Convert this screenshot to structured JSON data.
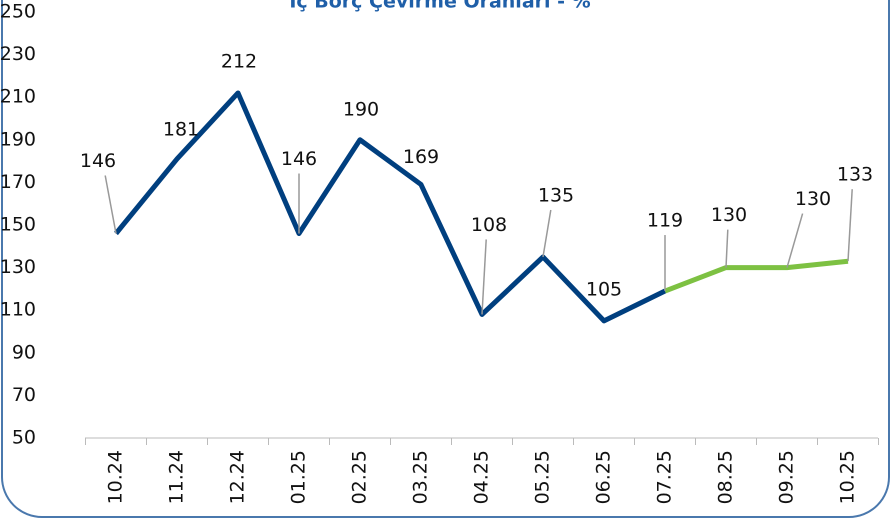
{
  "chart_data": {
    "type": "line",
    "title": "İç Borç Çevirme Oranları - %",
    "categories": [
      "10.24",
      "11.24",
      "12.24",
      "01.25",
      "02.25",
      "03.25",
      "04.25",
      "05.25",
      "06.25",
      "07.25",
      "08.25",
      "09.25",
      "10.25"
    ],
    "series": [
      {
        "color": "#003f7f",
        "values": [
          146,
          181,
          212,
          146,
          190,
          169,
          108,
          135,
          105,
          119,
          null,
          null,
          null
        ]
      },
      {
        "color": "#7dc142",
        "values": [
          null,
          null,
          null,
          null,
          null,
          null,
          null,
          null,
          null,
          119,
          130,
          130,
          133
        ]
      }
    ],
    "ylim": [
      50,
      250
    ],
    "yticks": [
      50,
      70,
      90,
      110,
      130,
      150,
      170,
      190,
      210,
      230,
      250
    ],
    "grid": false
  }
}
